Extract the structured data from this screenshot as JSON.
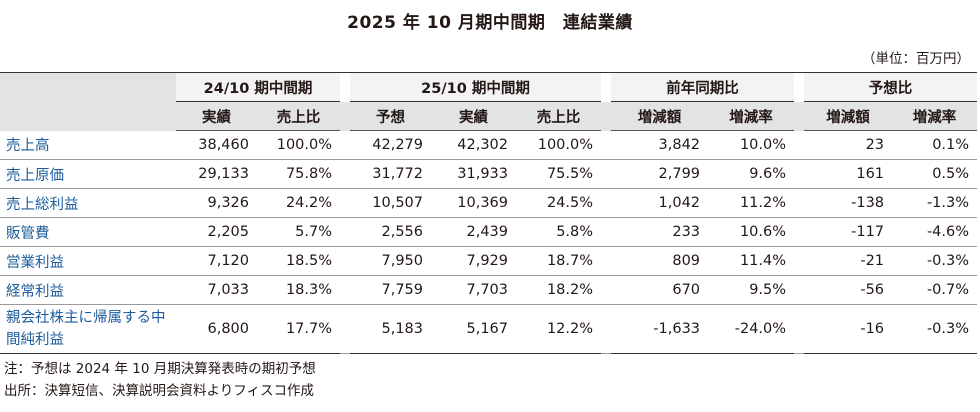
{
  "title": "2025 年 10 月期中間期　連結業績",
  "unit": "（単位：百万円）",
  "groups": {
    "g1": "24/10 期中間期",
    "g2": "25/10 期中間期",
    "g3": "前年同期比",
    "g4": "予想比"
  },
  "subheaders": {
    "g1_actual": "実績",
    "g1_ratio": "売上比",
    "g2_forecast": "予想",
    "g2_actual": "実績",
    "g2_ratio": "売上比",
    "g3_change": "増減額",
    "g3_rate": "増減率",
    "g4_change": "増減額",
    "g4_rate": "増減率"
  },
  "rows": [
    {
      "label": "売上高",
      "c1": "38,460",
      "c2": "100.0%",
      "c3": "42,279",
      "c4": "42,302",
      "c5": "100.0%",
      "c6": "3,842",
      "c7": "10.0%",
      "c8": "23",
      "c9": "0.1%"
    },
    {
      "label": "売上原価",
      "c1": "29,133",
      "c2": "75.8%",
      "c3": "31,772",
      "c4": "31,933",
      "c5": "75.5%",
      "c6": "2,799",
      "c7": "9.6%",
      "c8": "161",
      "c9": "0.5%"
    },
    {
      "label": "売上総利益",
      "c1": "9,326",
      "c2": "24.2%",
      "c3": "10,507",
      "c4": "10,369",
      "c5": "24.5%",
      "c6": "1,042",
      "c7": "11.2%",
      "c8": "-138",
      "c9": "-1.3%"
    },
    {
      "label": "販管費",
      "c1": "2,205",
      "c2": "5.7%",
      "c3": "2,556",
      "c4": "2,439",
      "c5": "5.8%",
      "c6": "233",
      "c7": "10.6%",
      "c8": "-117",
      "c9": "-4.6%"
    },
    {
      "label": "営業利益",
      "c1": "7,120",
      "c2": "18.5%",
      "c3": "7,950",
      "c4": "7,929",
      "c5": "18.7%",
      "c6": "809",
      "c7": "11.4%",
      "c8": "-21",
      "c9": "-0.3%"
    },
    {
      "label": "経常利益",
      "c1": "7,033",
      "c2": "18.3%",
      "c3": "7,759",
      "c4": "7,703",
      "c5": "18.2%",
      "c6": "670",
      "c7": "9.5%",
      "c8": "-56",
      "c9": "-0.7%"
    },
    {
      "label": "親会社株主に帰属する中間純利益",
      "c1": "6,800",
      "c2": "17.7%",
      "c3": "5,183",
      "c4": "5,167",
      "c5": "12.2%",
      "c6": "-1,633",
      "c7": "-24.0%",
      "c8": "-16",
      "c9": "-0.3%"
    }
  ],
  "notes": [
    "注：予想は 2024 年 10 月期決算発表時の期初予想",
    "出所：決算短信、決算説明会資料よりフィスコ作成"
  ]
}
